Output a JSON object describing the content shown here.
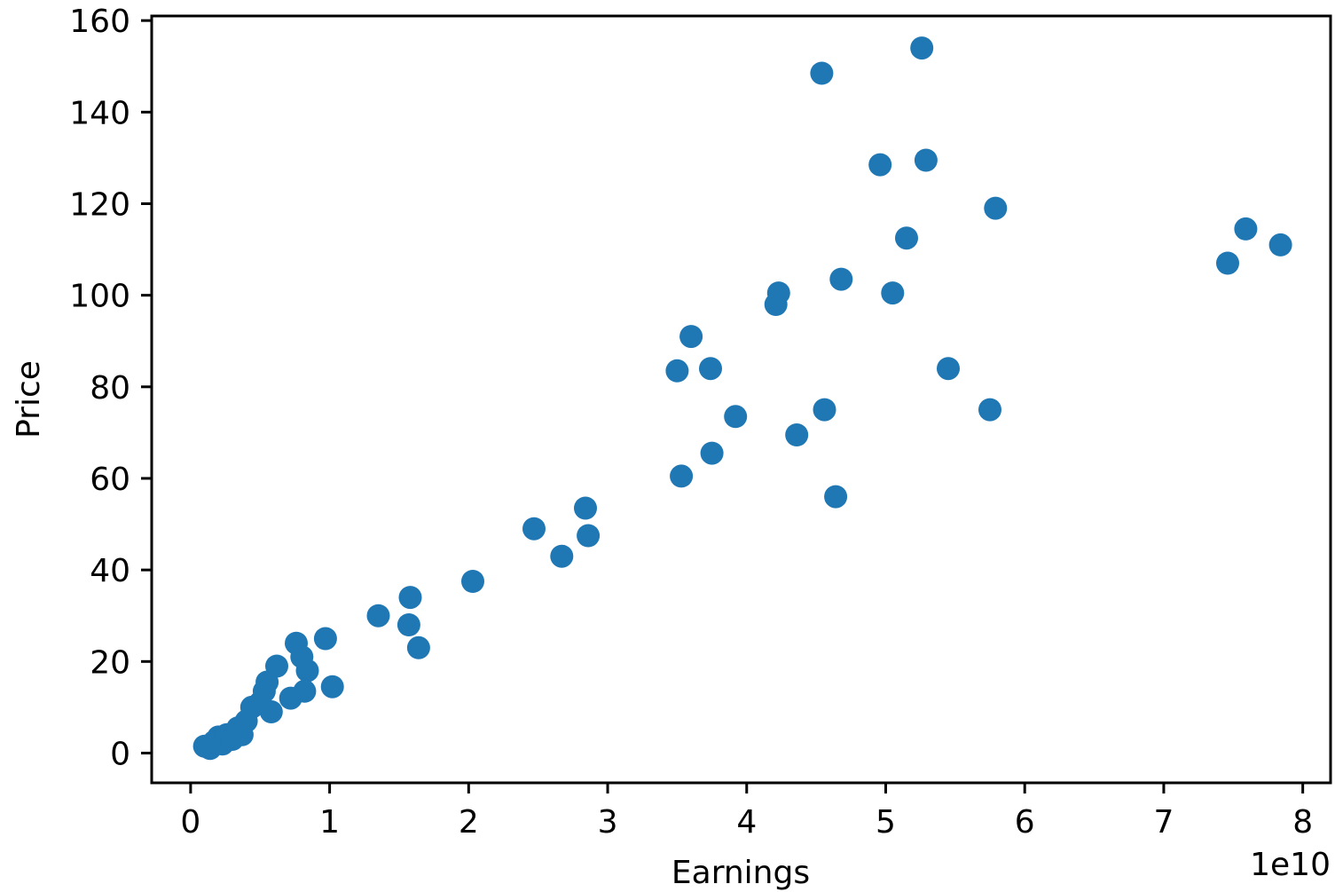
{
  "chart_data": {
    "type": "scatter",
    "title": "",
    "xlabel": "Earnings",
    "ylabel": "Price",
    "x_offset_label": "1e10",
    "xlim": [
      -0.28,
      8.2
    ],
    "ylim": [
      -6.5,
      161
    ],
    "xticks": [
      0,
      1,
      2,
      3,
      4,
      5,
      6,
      7,
      8
    ],
    "xtick_labels": [
      "0",
      "1",
      "2",
      "3",
      "4",
      "5",
      "6",
      "7",
      "8"
    ],
    "yticks": [
      0,
      20,
      40,
      60,
      80,
      100,
      120,
      140,
      160
    ],
    "ytick_labels": [
      "0",
      "20",
      "40",
      "60",
      "80",
      "100",
      "120",
      "140",
      "160"
    ],
    "grid": false,
    "marker_color": "#1f77b4",
    "points": [
      [
        0.1,
        1.5
      ],
      [
        0.14,
        1.0
      ],
      [
        0.17,
        2.5
      ],
      [
        0.2,
        3.5
      ],
      [
        0.23,
        2.0
      ],
      [
        0.26,
        4.0
      ],
      [
        0.3,
        3.0
      ],
      [
        0.34,
        5.5
      ],
      [
        0.37,
        4.0
      ],
      [
        0.4,
        7.0
      ],
      [
        0.44,
        10.0
      ],
      [
        0.5,
        11.0
      ],
      [
        0.53,
        13.5
      ],
      [
        0.55,
        15.5
      ],
      [
        0.58,
        9.0
      ],
      [
        0.62,
        19.0
      ],
      [
        0.72,
        12.0
      ],
      [
        0.76,
        24.0
      ],
      [
        0.8,
        21.0
      ],
      [
        0.84,
        18.0
      ],
      [
        0.82,
        13.5
      ],
      [
        0.97,
        25.0
      ],
      [
        1.02,
        14.5
      ],
      [
        1.35,
        30.0
      ],
      [
        1.58,
        34.0
      ],
      [
        1.57,
        28.0
      ],
      [
        1.64,
        23.0
      ],
      [
        2.03,
        37.5
      ],
      [
        2.47,
        49.0
      ],
      [
        2.67,
        43.0
      ],
      [
        2.84,
        53.5
      ],
      [
        2.86,
        47.5
      ],
      [
        3.5,
        83.5
      ],
      [
        3.53,
        60.5
      ],
      [
        3.6,
        91.0
      ],
      [
        3.74,
        84.0
      ],
      [
        3.75,
        65.5
      ],
      [
        3.92,
        73.5
      ],
      [
        4.21,
        98.0
      ],
      [
        4.23,
        100.5
      ],
      [
        4.36,
        69.5
      ],
      [
        4.54,
        148.5
      ],
      [
        4.56,
        75.0
      ],
      [
        4.64,
        56.0
      ],
      [
        4.68,
        103.5
      ],
      [
        4.96,
        128.5
      ],
      [
        5.05,
        100.5
      ],
      [
        5.15,
        112.5
      ],
      [
        5.26,
        154.0
      ],
      [
        5.29,
        129.5
      ],
      [
        5.45,
        84.0
      ],
      [
        5.75,
        75.0
      ],
      [
        5.79,
        119.0
      ],
      [
        7.46,
        107.0
      ],
      [
        7.59,
        114.5
      ],
      [
        7.84,
        111.0
      ]
    ]
  }
}
